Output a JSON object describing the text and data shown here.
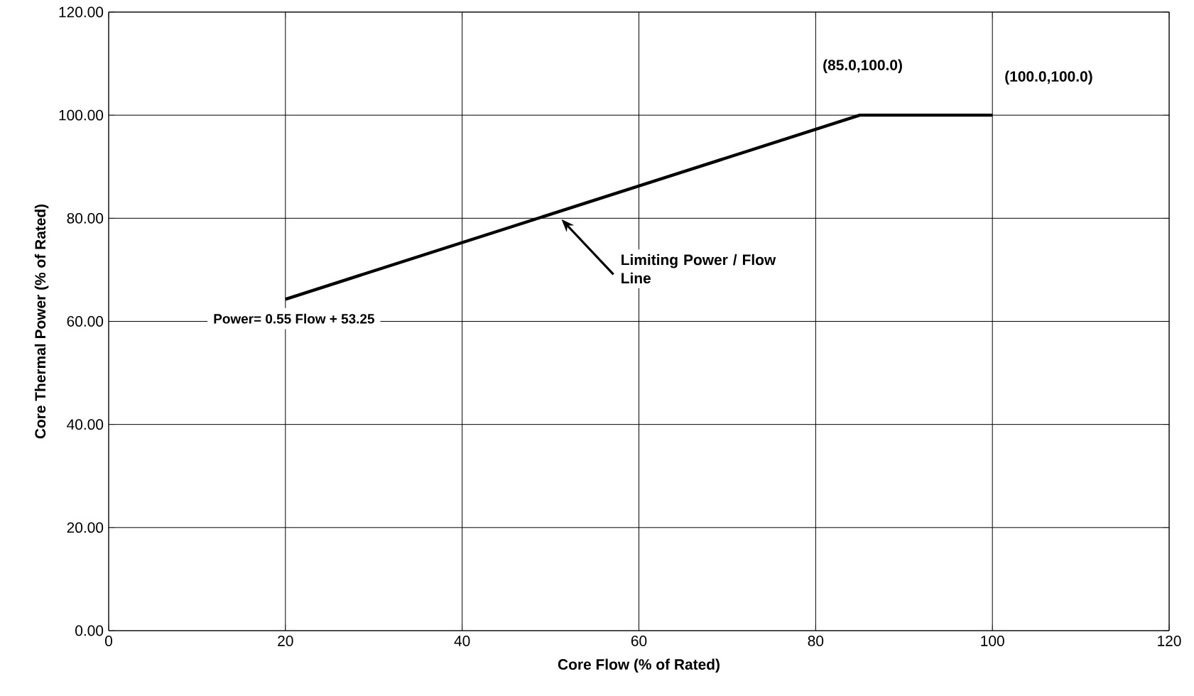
{
  "chart_data": {
    "type": "line",
    "xlabel": "Core Flow (% of Rated)",
    "ylabel": "Core Thermal Power (% of Rated)",
    "x": [
      20,
      85,
      100
    ],
    "series": [
      {
        "color": "#000000",
        "values": [
          64.3,
          100,
          100
        ]
      }
    ],
    "xlim": [
      0,
      120
    ],
    "xticks": [
      0,
      20,
      40,
      60,
      80,
      100,
      120
    ],
    "ylim": [
      0,
      120
    ],
    "yticks": [
      {
        "value": 0,
        "label": "0.00"
      },
      {
        "value": 20,
        "label": "20.00"
      },
      {
        "value": 40,
        "label": "40.00"
      },
      {
        "value": 60,
        "label": "60.00"
      },
      {
        "value": 80,
        "label": "80.00"
      },
      {
        "value": 100,
        "label": "100.00"
      },
      {
        "value": 120,
        "label": "120.00"
      }
    ],
    "grid": true,
    "marker": "none",
    "line_style": "solid",
    "annotations": [
      {
        "text": "(85.0,100.0)",
        "x": 85,
        "y": 100
      },
      {
        "text": "(100.0,100.0)",
        "x": 100,
        "y": 100
      },
      "Limiting Power / Flow Line",
      {
        "text": "Power= 0.55 Flow + 53.25",
        "x": 20,
        "y": 64.3
      }
    ]
  }
}
